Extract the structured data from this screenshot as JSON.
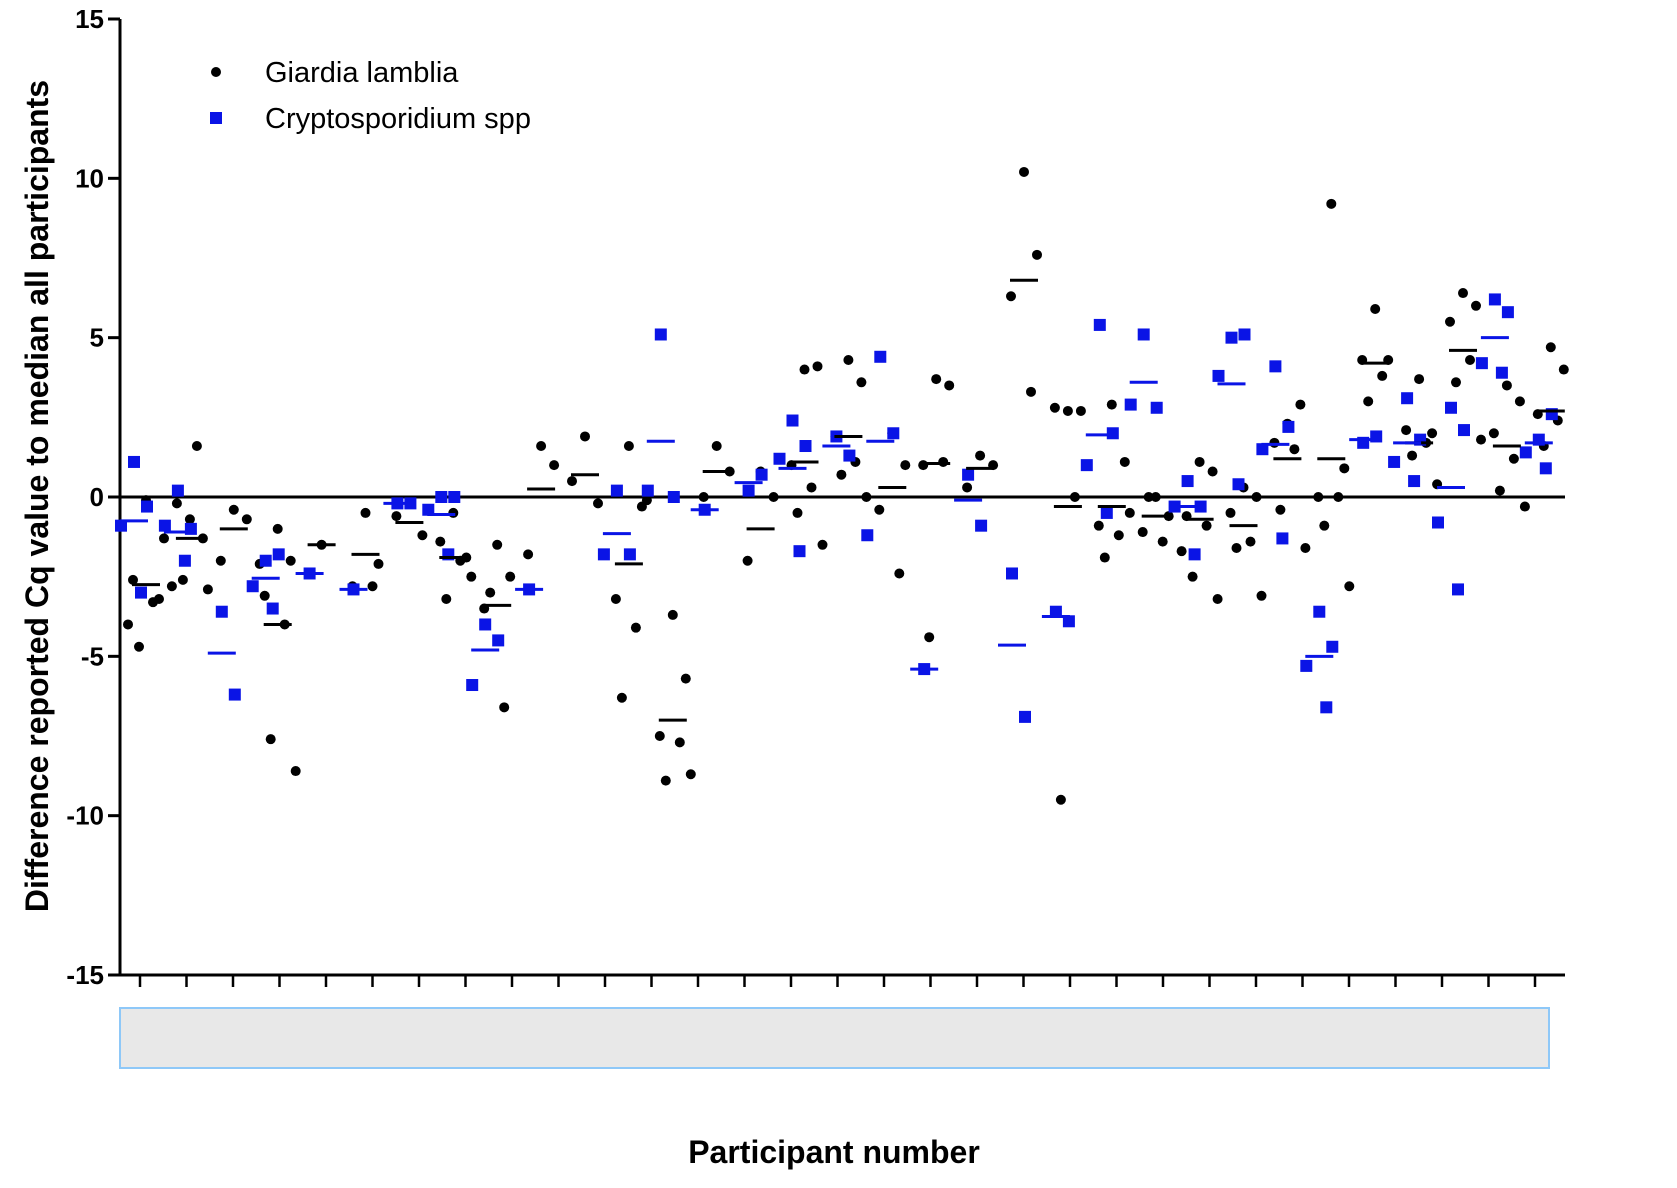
{
  "chart_data": {
    "type": "scatter",
    "title": "",
    "xlabel": "Participant number",
    "ylabel": "Difference reported Cq value to median all participants",
    "ylim": [
      -15,
      15
    ],
    "yticks": [
      -15,
      -10,
      -5,
      0,
      5,
      10,
      15
    ],
    "ytick_labels": [
      "-15",
      "-10",
      "-5",
      "0",
      "5",
      "10",
      "15"
    ],
    "xtick_count": 31,
    "xtick_labels": "",
    "grid": false,
    "reference_line_y": 0,
    "legend_position": "top-left",
    "colors": {
      "giardia": "#000000",
      "crypto": "#0a14e6",
      "xlabel_box_fill": "#e8e8e8",
      "xlabel_box_border": "#8ec8f8"
    },
    "series": [
      {
        "name": "Giardia lamblia",
        "marker": "circle",
        "color": "#000000",
        "points": [
          [
            1,
            -0.1
          ],
          [
            1,
            -3.2
          ],
          [
            1,
            -2.6
          ],
          [
            1,
            -3.3
          ],
          [
            1,
            -4.7
          ],
          [
            1,
            -1.3
          ],
          [
            1,
            -4.0
          ],
          [
            2,
            -0.7
          ],
          [
            2,
            -1.3
          ],
          [
            2,
            -0.2
          ],
          [
            2,
            1.6
          ],
          [
            2,
            -2.6
          ],
          [
            2,
            -2.9
          ],
          [
            2,
            -2.8
          ],
          [
            3,
            -0.4
          ],
          [
            3,
            -0.7
          ],
          [
            3,
            -2.0
          ],
          [
            4,
            -1.0
          ],
          [
            4,
            -2.0
          ],
          [
            4,
            -3.1
          ],
          [
            4,
            -4.0
          ],
          [
            4,
            -7.6
          ],
          [
            4,
            -8.6
          ],
          [
            4,
            -2.1
          ],
          [
            5,
            -1.5
          ],
          [
            6,
            -0.5
          ],
          [
            6,
            -2.1
          ],
          [
            6,
            -2.8
          ],
          [
            6,
            -2.8
          ],
          [
            7,
            -0.2
          ],
          [
            7,
            -1.2
          ],
          [
            7,
            -0.6
          ],
          [
            8,
            -0.5
          ],
          [
            8,
            -1.9
          ],
          [
            8,
            -1.4
          ],
          [
            8,
            -2.0
          ],
          [
            8,
            -3.2
          ],
          [
            8,
            -2.5
          ],
          [
            9,
            -1.5
          ],
          [
            9,
            -2.5
          ],
          [
            9,
            -3.5
          ],
          [
            9,
            -6.6
          ],
          [
            9,
            -3.0
          ],
          [
            10,
            1.6
          ],
          [
            10,
            1.0
          ],
          [
            10,
            -1.8
          ],
          [
            11,
            1.9
          ],
          [
            11,
            -0.2
          ],
          [
            11,
            0.5
          ],
          [
            12,
            1.6
          ],
          [
            12,
            -0.3
          ],
          [
            12,
            -3.2
          ],
          [
            12,
            -4.1
          ],
          [
            12,
            -6.3
          ],
          [
            12,
            -0.1
          ],
          [
            13,
            -3.7
          ],
          [
            13,
            -5.7
          ],
          [
            13,
            -7.5
          ],
          [
            13,
            -7.7
          ],
          [
            13,
            -8.9
          ],
          [
            13,
            -8.7
          ],
          [
            14,
            1.6
          ],
          [
            14,
            0.8
          ],
          [
            14,
            0.0
          ],
          [
            15,
            0.8
          ],
          [
            15,
            0.0
          ],
          [
            15,
            -2.0
          ],
          [
            16,
            4.0
          ],
          [
            16,
            4.1
          ],
          [
            16,
            1.0
          ],
          [
            16,
            0.3
          ],
          [
            16,
            -0.5
          ],
          [
            16,
            -1.5
          ],
          [
            17,
            4.3
          ],
          [
            17,
            3.6
          ],
          [
            17,
            1.9
          ],
          [
            17,
            1.1
          ],
          [
            17,
            0.7
          ],
          [
            17,
            0.0
          ],
          [
            18,
            2.0
          ],
          [
            18,
            1.0
          ],
          [
            18,
            -0.4
          ],
          [
            18,
            -2.4
          ],
          [
            19,
            3.7
          ],
          [
            19,
            3.5
          ],
          [
            19,
            1.0
          ],
          [
            19,
            1.1
          ],
          [
            19,
            -4.4
          ],
          [
            20,
            1.3
          ],
          [
            20,
            1.0
          ],
          [
            20,
            0.3
          ],
          [
            21,
            10.2
          ],
          [
            21,
            7.6
          ],
          [
            21,
            6.3
          ],
          [
            21,
            3.3
          ],
          [
            22,
            2.7
          ],
          [
            22,
            2.7
          ],
          [
            22,
            2.8
          ],
          [
            22,
            0.0
          ],
          [
            22,
            -9.5
          ],
          [
            23,
            2.9
          ],
          [
            23,
            1.1
          ],
          [
            23,
            -0.9
          ],
          [
            23,
            -1.2
          ],
          [
            23,
            -1.9
          ],
          [
            23,
            -0.5
          ],
          [
            24,
            0.0
          ],
          [
            24,
            -0.6
          ],
          [
            24,
            -1.1
          ],
          [
            24,
            -1.4
          ],
          [
            24,
            0.0
          ],
          [
            25,
            1.1
          ],
          [
            25,
            0.8
          ],
          [
            25,
            -0.6
          ],
          [
            25,
            -0.9
          ],
          [
            25,
            -2.5
          ],
          [
            25,
            -3.2
          ],
          [
            25,
            -1.7
          ],
          [
            26,
            0.3
          ],
          [
            26,
            0.0
          ],
          [
            26,
            -0.5
          ],
          [
            26,
            -1.4
          ],
          [
            26,
            -1.6
          ],
          [
            26,
            -3.1
          ],
          [
            27,
            2.3
          ],
          [
            27,
            2.9
          ],
          [
            27,
            1.7
          ],
          [
            27,
            1.5
          ],
          [
            27,
            -0.4
          ],
          [
            27,
            -1.6
          ],
          [
            28,
            9.2
          ],
          [
            28,
            0.9
          ],
          [
            28,
            0.0
          ],
          [
            28,
            0.0
          ],
          [
            28,
            -0.9
          ],
          [
            28,
            -2.8
          ],
          [
            29,
            5.9
          ],
          [
            29,
            4.3
          ],
          [
            29,
            4.3
          ],
          [
            29,
            3.8
          ],
          [
            29,
            3.0
          ],
          [
            30,
            3.7
          ],
          [
            30,
            2.0
          ],
          [
            30,
            2.1
          ],
          [
            30,
            1.7
          ],
          [
            30,
            1.3
          ],
          [
            30,
            0.4
          ],
          [
            31,
            6.4
          ],
          [
            31,
            6.0
          ],
          [
            31,
            5.5
          ],
          [
            31,
            4.3
          ],
          [
            31,
            3.6
          ],
          [
            31,
            1.8
          ],
          [
            32,
            3.5
          ],
          [
            32,
            3.0
          ],
          [
            32,
            2.0
          ],
          [
            32,
            1.2
          ],
          [
            32,
            0.2
          ],
          [
            32,
            -0.3
          ],
          [
            33,
            4.7
          ],
          [
            33,
            4.0
          ],
          [
            33,
            2.6
          ],
          [
            33,
            2.4
          ],
          [
            33,
            1.6
          ]
        ],
        "medians": [
          [
            1,
            -2.75
          ],
          [
            2,
            -1.3
          ],
          [
            3,
            -1.0
          ],
          [
            4,
            -4.0
          ],
          [
            5,
            -1.5
          ],
          [
            6,
            -1.8
          ],
          [
            7,
            -0.8
          ],
          [
            8,
            -1.9
          ],
          [
            9,
            -3.4
          ],
          [
            10,
            0.25
          ],
          [
            11,
            0.7
          ],
          [
            12,
            -2.1
          ],
          [
            13,
            -7.0
          ],
          [
            14,
            0.8
          ],
          [
            15,
            -1.0
          ],
          [
            16,
            1.1
          ],
          [
            17,
            1.9
          ],
          [
            18,
            0.3
          ],
          [
            19,
            1.05
          ],
          [
            20,
            0.9
          ],
          [
            21,
            6.8
          ],
          [
            22,
            -0.3
          ],
          [
            23,
            -0.3
          ],
          [
            24,
            -0.6
          ],
          [
            25,
            -0.7
          ],
          [
            26,
            -0.9
          ],
          [
            27,
            1.2
          ],
          [
            28,
            1.2
          ],
          [
            29,
            4.2
          ],
          [
            30,
            1.7
          ],
          [
            31,
            4.6
          ],
          [
            32,
            1.6
          ],
          [
            33,
            2.7
          ]
        ]
      },
      {
        "name": "Cryptosporidium spp",
        "marker": "square",
        "color": "#0a14e6",
        "points": [
          [
            1,
            1.1
          ],
          [
            1,
            -0.3
          ],
          [
            1,
            -0.9
          ],
          [
            1,
            -3.0
          ],
          [
            2,
            0.2
          ],
          [
            2,
            -1.0
          ],
          [
            2,
            -0.9
          ],
          [
            2,
            -2.0
          ],
          [
            3,
            -3.6
          ],
          [
            3,
            -6.2
          ],
          [
            4,
            -2.0
          ],
          [
            4,
            -1.8
          ],
          [
            4,
            -2.8
          ],
          [
            4,
            -3.5
          ],
          [
            5,
            -2.4
          ],
          [
            6,
            -2.9
          ],
          [
            7,
            -0.2
          ],
          [
            7,
            -0.2
          ],
          [
            8,
            0.0
          ],
          [
            8,
            0.0
          ],
          [
            8,
            -0.4
          ],
          [
            8,
            -1.8
          ],
          [
            9,
            -4.0
          ],
          [
            9,
            -4.5
          ],
          [
            9,
            -5.9
          ],
          [
            10,
            -2.9
          ],
          [
            12,
            0.2
          ],
          [
            12,
            -1.8
          ],
          [
            12,
            -1.8
          ],
          [
            13,
            5.1
          ],
          [
            13,
            0.0
          ],
          [
            13,
            0.2
          ],
          [
            14,
            -0.4
          ],
          [
            15,
            0.2
          ],
          [
            15,
            0.7
          ],
          [
            16,
            2.4
          ],
          [
            16,
            1.6
          ],
          [
            16,
            1.2
          ],
          [
            16,
            -1.7
          ],
          [
            17,
            1.9
          ],
          [
            17,
            1.3
          ],
          [
            18,
            4.4
          ],
          [
            18,
            2.0
          ],
          [
            18,
            -1.2
          ],
          [
            19,
            -5.4
          ],
          [
            20,
            0.7
          ],
          [
            20,
            -0.9
          ],
          [
            21,
            -2.4
          ],
          [
            21,
            -6.9
          ],
          [
            22,
            -3.6
          ],
          [
            22,
            -3.9
          ],
          [
            23,
            5.4
          ],
          [
            23,
            2.0
          ],
          [
            23,
            1.0
          ],
          [
            23,
            -0.5
          ],
          [
            24,
            5.1
          ],
          [
            24,
            2.8
          ],
          [
            24,
            2.9
          ],
          [
            25,
            0.5
          ],
          [
            25,
            -0.3
          ],
          [
            25,
            -0.3
          ],
          [
            25,
            -1.8
          ],
          [
            26,
            5.0
          ],
          [
            26,
            5.1
          ],
          [
            26,
            3.8
          ],
          [
            26,
            0.4
          ],
          [
            27,
            4.1
          ],
          [
            27,
            2.2
          ],
          [
            27,
            1.5
          ],
          [
            27,
            -1.3
          ],
          [
            28,
            -3.6
          ],
          [
            28,
            -4.7
          ],
          [
            28,
            -5.3
          ],
          [
            28,
            -6.6
          ],
          [
            29,
            1.7
          ],
          [
            29,
            1.9
          ],
          [
            30,
            3.1
          ],
          [
            30,
            1.8
          ],
          [
            30,
            1.1
          ],
          [
            30,
            0.5
          ],
          [
            31,
            2.8
          ],
          [
            31,
            2.1
          ],
          [
            31,
            -0.8
          ],
          [
            31,
            -2.9
          ],
          [
            32,
            6.2
          ],
          [
            32,
            5.8
          ],
          [
            32,
            4.2
          ],
          [
            32,
            3.9
          ],
          [
            33,
            1.8
          ],
          [
            33,
            2.6
          ],
          [
            33,
            1.4
          ],
          [
            33,
            0.9
          ]
        ],
        "medians": [
          [
            1,
            -0.75
          ],
          [
            2,
            -1.1
          ],
          [
            3,
            -4.9
          ],
          [
            4,
            -2.55
          ],
          [
            5,
            -2.4
          ],
          [
            6,
            -2.9
          ],
          [
            7,
            -0.2
          ],
          [
            8,
            -0.55
          ],
          [
            9,
            -4.8
          ],
          [
            10,
            -2.9
          ],
          [
            12,
            -1.15
          ],
          [
            13,
            1.75
          ],
          [
            14,
            -0.4
          ],
          [
            15,
            0.45
          ],
          [
            16,
            0.9
          ],
          [
            17,
            1.6
          ],
          [
            18,
            1.75
          ],
          [
            19,
            -5.4
          ],
          [
            20,
            -0.1
          ],
          [
            21,
            -4.65
          ],
          [
            22,
            -3.75
          ],
          [
            23,
            1.95
          ],
          [
            24,
            3.6
          ],
          [
            25,
            -0.3
          ],
          [
            26,
            3.55
          ],
          [
            27,
            1.65
          ],
          [
            28,
            -5.0
          ],
          [
            29,
            1.8
          ],
          [
            30,
            1.7
          ],
          [
            31,
            0.3
          ],
          [
            32,
            5.0
          ],
          [
            33,
            1.7
          ]
        ]
      }
    ]
  }
}
